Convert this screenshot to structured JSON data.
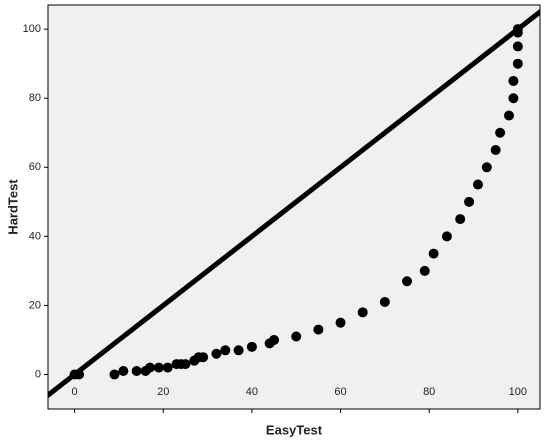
{
  "chart_data": {
    "type": "scatter",
    "x_label": "EasyTest",
    "y_label": "HardTest",
    "x": [
      0,
      1,
      9,
      11,
      14,
      16,
      17,
      19,
      21,
      23,
      24,
      25,
      27,
      28,
      29,
      32,
      34,
      37,
      40,
      44,
      45,
      50,
      55,
      60,
      65,
      70,
      75,
      79,
      81,
      84,
      87,
      89,
      91,
      93,
      95,
      96,
      98,
      99,
      99,
      100,
      100,
      100,
      100
    ],
    "values": [
      0,
      0,
      0,
      1,
      1,
      1,
      2,
      2,
      2,
      3,
      3,
      3,
      4,
      5,
      5,
      6,
      7,
      7,
      8,
      9,
      10,
      11,
      13,
      15,
      18,
      21,
      27,
      30,
      35,
      40,
      45,
      50,
      55,
      60,
      65,
      70,
      75,
      80,
      85,
      90,
      95,
      99,
      100
    ],
    "color": "#000000",
    "xlim": [
      -6,
      105
    ],
    "ylim": [
      -10,
      107
    ],
    "xticks": [
      0,
      20,
      40,
      60,
      80,
      100
    ],
    "yticks": [
      0,
      20,
      40,
      60,
      80,
      100
    ],
    "diagonal": true,
    "background": "#f0f0f0"
  }
}
